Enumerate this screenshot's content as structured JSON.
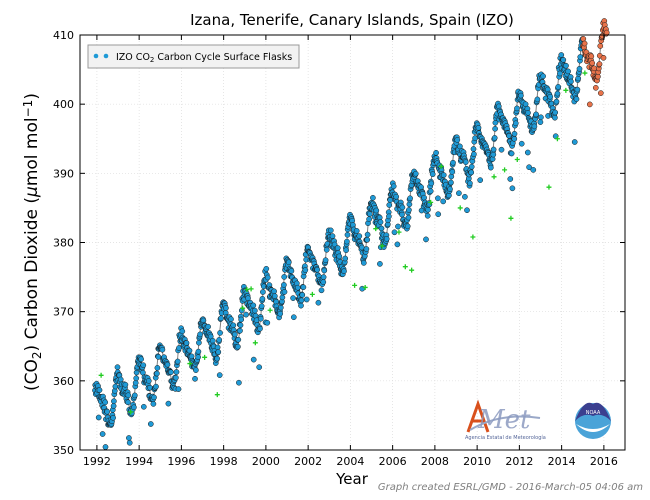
{
  "chart_data": {
    "type": "scatter",
    "title": "Izana, Tenerife, Canary Islands, Spain (IZO)",
    "xlabel": "Year",
    "ylabel_main": "(CO",
    "ylabel_sub": "2",
    "ylabel_mid": ") Carbon Dioxide (",
    "ylabel_mu": "μ",
    "ylabel_unit": "mol mol",
    "ylabel_sup": "−1",
    "ylabel_end": ")",
    "xlim": [
      1991.2,
      2017.0
    ],
    "ylim": [
      350,
      410
    ],
    "x_ticks": [
      1992,
      1994,
      1996,
      1998,
      2000,
      2002,
      2004,
      2006,
      2008,
      2010,
      2012,
      2014,
      2016
    ],
    "y_ticks": [
      350,
      360,
      370,
      380,
      390,
      400,
      410
    ],
    "grid": true,
    "legend": {
      "placement": "top-left",
      "label_prefix": "IZO CO",
      "label_sub": "2",
      "label_suffix": " Carbon Cycle Surface Flasks"
    },
    "colors": {
      "flask": "#1f9ad6",
      "preliminary": "#e8734a",
      "rejected": "#22cc22",
      "trend": "#808080"
    },
    "model": {
      "base_year": 1991.9,
      "base_value": 355.6,
      "growth_per_year": 1.88,
      "growth_accel": 0.012,
      "seasonal_amplitude": 2.9
    },
    "series": [
      {
        "kind": "flask",
        "x_range": [
          1991.9,
          2015.0
        ],
        "n": 1150
      },
      {
        "kind": "preliminary",
        "x_range": [
          2015.0,
          2016.15
        ],
        "n": 60
      }
    ],
    "trend_line": {
      "x_range": [
        1991.9,
        2016.1
      ]
    },
    "rejected_points": [
      [
        1992.2,
        360.8
      ],
      [
        1993.6,
        355.5
      ],
      [
        1996.4,
        362.5
      ],
      [
        1997.1,
        363.4
      ],
      [
        1997.7,
        358.0
      ],
      [
        1999.1,
        373.2
      ],
      [
        1999.3,
        373.3
      ],
      [
        1999.5,
        365.5
      ],
      [
        1998.9,
        370.5
      ],
      [
        2000.2,
        370.2
      ],
      [
        2002.2,
        372.5
      ],
      [
        2004.2,
        373.8
      ],
      [
        2004.7,
        373.5
      ],
      [
        2005.2,
        382.0
      ],
      [
        2005.5,
        379.5
      ],
      [
        2006.3,
        381.5
      ],
      [
        2006.6,
        376.5
      ],
      [
        2006.9,
        376.0
      ],
      [
        2007.8,
        385.8
      ],
      [
        2008.3,
        391.0
      ],
      [
        2009.2,
        385.0
      ],
      [
        2009.8,
        380.8
      ],
      [
        2010.8,
        389.5
      ],
      [
        2011.3,
        390.5
      ],
      [
        2011.6,
        383.5
      ],
      [
        2011.9,
        392.0
      ],
      [
        2013.4,
        388.0
      ],
      [
        2013.8,
        395.0
      ],
      [
        2014.2,
        402.0
      ],
      [
        2015.1,
        404.5
      ]
    ],
    "logos": {
      "left_name": "AEMet",
      "left_caption": "Agencia Estatal de Meteorología",
      "right_name": "NOAA"
    }
  },
  "credit": "Graph created ESRL/GMD - 2016-March-05 04:06 am"
}
